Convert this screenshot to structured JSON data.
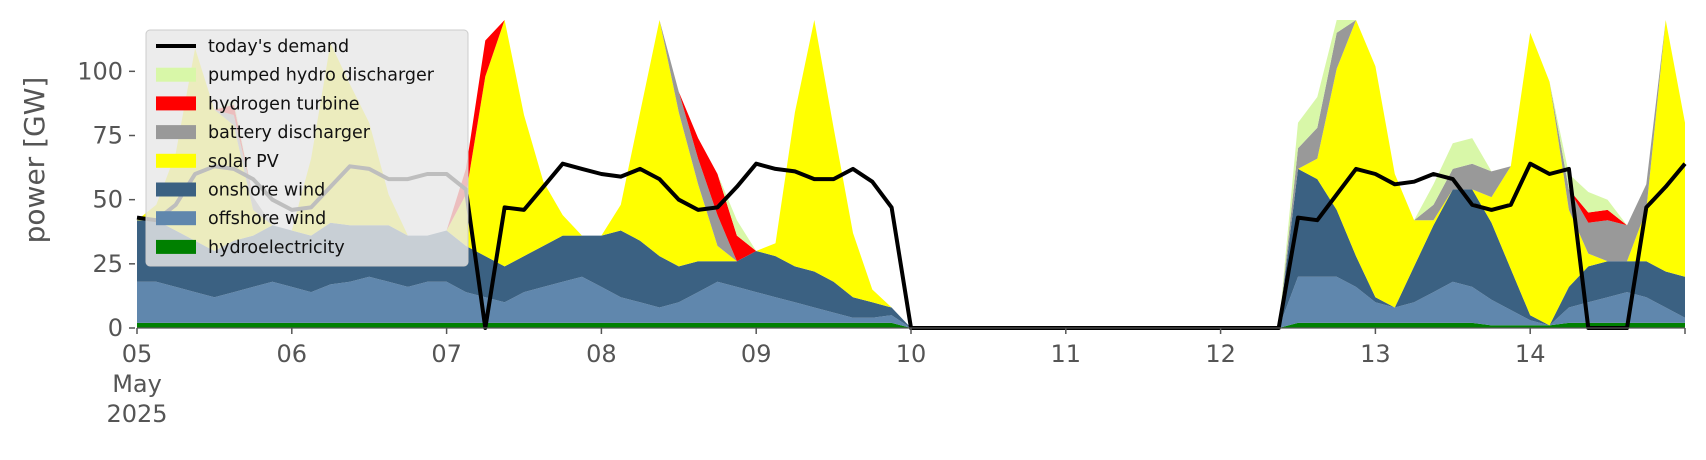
{
  "chart_data": {
    "type": "area",
    "ylabel": "power [GW]",
    "ylim": [
      0,
      120
    ],
    "yticks": [
      "0",
      "25",
      "50",
      "75",
      "100"
    ],
    "xlim": [
      "2025-05-05 00:00",
      "2025-05-15 00:00"
    ],
    "xtick_labels": [
      "05\nMay\n2025",
      "06",
      "07",
      "08",
      "09",
      "10",
      "11",
      "12",
      "13",
      "14"
    ],
    "x_unit": "hours after 2025-05-05 00:00",
    "grid": false,
    "legend_position": "upper-left",
    "legend_order": [
      "today's demand",
      "pumped hydro discharger",
      "hydrogen turbine",
      "battery discharger",
      "solar PV",
      "onshore wind",
      "offshore wind",
      "hydroelectricity"
    ],
    "stack_order": [
      "hydroelectricity",
      "offshore wind",
      "onshore wind",
      "solar PV",
      "battery discharger",
      "hydrogen turbine",
      "pumped hydro discharger"
    ],
    "colors": {
      "today's demand": "#000000",
      "pumped hydro discharger": "#d8f7a8",
      "hydrogen turbine": "#ff0000",
      "battery discharger": "#999999",
      "solar PV": "#ffff00",
      "onshore wind": "#3b6182",
      "offshore wind": "#6087ad",
      "hydroelectricity": "#008000"
    },
    "x": [
      0,
      3,
      6,
      9,
      12,
      15,
      18,
      21,
      24,
      27,
      30,
      33,
      36,
      39,
      42,
      45,
      48,
      51,
      54,
      57,
      60,
      63,
      66,
      69,
      72,
      75,
      78,
      81,
      84,
      87,
      90,
      93,
      96,
      99,
      102,
      105,
      108,
      111,
      114,
      117,
      120,
      123,
      126,
      129,
      132,
      135,
      138,
      141,
      144,
      147,
      150,
      153,
      156,
      159,
      162,
      165,
      168,
      171,
      174,
      177,
      180,
      183,
      186,
      189,
      192,
      195,
      198,
      201,
      204,
      207,
      210,
      213,
      216,
      219,
      222,
      225,
      228,
      231,
      234,
      237,
      240
    ],
    "series": [
      {
        "name": "hydroelectricity",
        "kind": "area",
        "values": [
          2,
          2,
          2,
          2,
          2,
          2,
          2,
          2,
          2,
          2,
          2,
          2,
          2,
          2,
          2,
          2,
          2,
          2,
          2,
          2,
          2,
          2,
          2,
          2,
          2,
          2,
          2,
          2,
          2,
          2,
          2,
          2,
          2,
          2,
          2,
          2,
          2,
          2,
          2,
          2,
          0,
          0,
          0,
          0,
          0,
          0,
          0,
          0,
          0,
          0,
          0,
          0,
          0,
          0,
          0,
          0,
          0,
          0,
          0,
          0,
          2,
          2,
          2,
          2,
          2,
          2,
          2,
          2,
          2,
          2,
          1,
          1,
          1,
          1,
          2,
          2,
          2,
          2,
          2,
          2,
          2
        ]
      },
      {
        "name": "offshore wind",
        "kind": "area",
        "values": [
          16,
          16,
          14,
          12,
          10,
          12,
          14,
          16,
          14,
          12,
          15,
          16,
          18,
          16,
          14,
          16,
          16,
          12,
          10,
          8,
          12,
          14,
          16,
          18,
          14,
          10,
          8,
          6,
          8,
          12,
          16,
          14,
          12,
          10,
          8,
          6,
          4,
          2,
          2,
          3,
          0,
          0,
          0,
          0,
          0,
          0,
          0,
          0,
          0,
          0,
          0,
          0,
          0,
          0,
          0,
          0,
          0,
          0,
          0,
          0,
          18,
          18,
          18,
          14,
          8,
          6,
          8,
          12,
          16,
          14,
          10,
          6,
          2,
          0,
          6,
          8,
          10,
          12,
          10,
          6,
          2
        ]
      },
      {
        "name": "onshore wind",
        "kind": "area",
        "values": [
          24,
          24,
          22,
          20,
          18,
          20,
          20,
          22,
          22,
          22,
          24,
          22,
          20,
          22,
          20,
          18,
          20,
          18,
          16,
          14,
          14,
          16,
          18,
          16,
          20,
          26,
          24,
          20,
          14,
          12,
          8,
          10,
          16,
          16,
          14,
          14,
          12,
          8,
          6,
          3,
          0,
          0,
          0,
          0,
          0,
          0,
          0,
          0,
          0,
          0,
          0,
          0,
          0,
          0,
          0,
          0,
          0,
          0,
          0,
          0,
          42,
          38,
          26,
          12,
          2,
          0,
          14,
          26,
          36,
          38,
          30,
          16,
          2,
          0,
          8,
          14,
          14,
          12,
          14,
          14,
          16
        ]
      },
      {
        "name": "solar PV",
        "kind": "area",
        "values": [
          0,
          6,
          30,
          75,
          55,
          45,
          10,
          0,
          0,
          30,
          70,
          55,
          40,
          12,
          0,
          0,
          0,
          20,
          70,
          108,
          55,
          25,
          8,
          0,
          0,
          10,
          50,
          100,
          60,
          30,
          6,
          0,
          0,
          5,
          60,
          100,
          60,
          25,
          5,
          0,
          0,
          0,
          0,
          0,
          0,
          0,
          0,
          0,
          0,
          0,
          0,
          0,
          0,
          0,
          0,
          0,
          0,
          0,
          0,
          0,
          0,
          8,
          55,
          120,
          90,
          52,
          18,
          2,
          0,
          0,
          10,
          40,
          110,
          95,
          30,
          5,
          0,
          0,
          20,
          100,
          60
        ]
      },
      {
        "name": "battery discharger",
        "kind": "area",
        "values": [
          0,
          0,
          0,
          0,
          0,
          4,
          5,
          0,
          0,
          0,
          0,
          0,
          0,
          0,
          0,
          0,
          0,
          0,
          0,
          0,
          0,
          0,
          0,
          0,
          0,
          0,
          0,
          0,
          8,
          10,
          12,
          0,
          0,
          0,
          0,
          0,
          0,
          0,
          0,
          0,
          0,
          0,
          0,
          0,
          0,
          0,
          0,
          0,
          0,
          0,
          0,
          0,
          0,
          0,
          0,
          0,
          0,
          0,
          0,
          0,
          8,
          12,
          14,
          0,
          0,
          0,
          0,
          6,
          8,
          10,
          10,
          0,
          0,
          0,
          8,
          12,
          16,
          14,
          10,
          0,
          0
        ]
      },
      {
        "name": "hydrogen turbine",
        "kind": "area",
        "values": [
          0,
          0,
          0,
          0,
          0,
          4,
          0,
          0,
          0,
          0,
          0,
          0,
          0,
          0,
          0,
          0,
          0,
          10,
          14,
          8,
          0,
          0,
          0,
          0,
          0,
          0,
          0,
          0,
          0,
          8,
          16,
          10,
          0,
          0,
          0,
          0,
          0,
          0,
          0,
          0,
          0,
          0,
          0,
          0,
          0,
          0,
          0,
          0,
          0,
          0,
          0,
          0,
          0,
          0,
          0,
          0,
          0,
          0,
          0,
          0,
          0,
          0,
          0,
          0,
          0,
          0,
          0,
          0,
          0,
          0,
          0,
          0,
          0,
          0,
          0,
          4,
          4,
          0,
          0,
          0,
          0
        ]
      },
      {
        "name": "pumped hydro discharger",
        "kind": "area",
        "values": [
          0,
          0,
          0,
          0,
          0,
          2,
          0,
          0,
          0,
          0,
          0,
          0,
          0,
          0,
          0,
          0,
          0,
          0,
          0,
          0,
          0,
          0,
          0,
          0,
          0,
          0,
          0,
          0,
          0,
          0,
          0,
          6,
          0,
          0,
          0,
          0,
          0,
          0,
          0,
          0,
          0,
          0,
          0,
          0,
          0,
          0,
          0,
          0,
          0,
          0,
          0,
          0,
          0,
          0,
          0,
          0,
          0,
          0,
          0,
          0,
          10,
          12,
          8,
          0,
          0,
          0,
          0,
          8,
          10,
          10,
          0,
          0,
          0,
          0,
          6,
          8,
          4,
          0,
          0,
          0,
          0
        ]
      },
      {
        "name": "today's demand",
        "kind": "line",
        "values": [
          43,
          42,
          48,
          60,
          63,
          62,
          58,
          50,
          46,
          47,
          55,
          63,
          62,
          58,
          58,
          60,
          60,
          54,
          0,
          47,
          46,
          55,
          64,
          62,
          60,
          59,
          62,
          58,
          50,
          46,
          47,
          55,
          64,
          62,
          61,
          58,
          58,
          62,
          57,
          47,
          0,
          0,
          0,
          0,
          0,
          0,
          0,
          0,
          0,
          0,
          0,
          0,
          0,
          0,
          0,
          0,
          0,
          0,
          0,
          0,
          43,
          42,
          52,
          62,
          60,
          56,
          57,
          60,
          58,
          48,
          46,
          48,
          64,
          60,
          62,
          0,
          0,
          0,
          47,
          55,
          64
        ]
      }
    ]
  }
}
